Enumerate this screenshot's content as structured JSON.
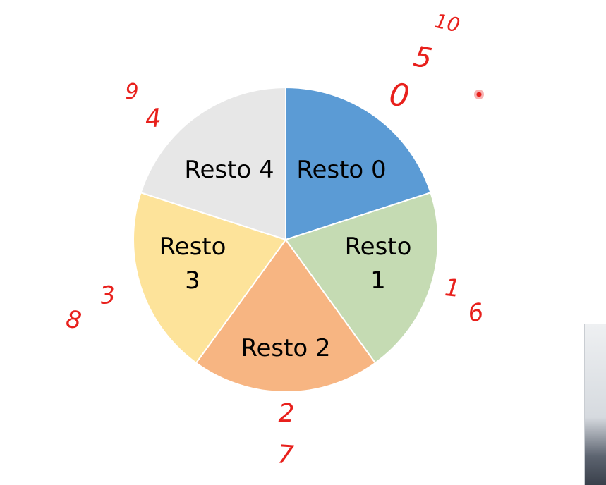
{
  "chart_data": {
    "type": "pie",
    "title": "",
    "slices": [
      {
        "label": "Resto 0",
        "value": 1,
        "color": "#5b9bd5"
      },
      {
        "label": "Resto 1",
        "value": 1,
        "color": "#c5dbb3"
      },
      {
        "label": "Resto 2",
        "value": 1,
        "color": "#f7b582"
      },
      {
        "label": "Resto 3",
        "value": 1,
        "color": "#fde39a"
      },
      {
        "label": "Resto 4",
        "value": 1,
        "color": "#e7e7e7"
      }
    ],
    "start_angle_deg": 0,
    "direction": "clockwise"
  },
  "annotations": {
    "color": "#e8201c",
    "notes": [
      {
        "slice": "Resto 0",
        "text": "0"
      },
      {
        "slice": "Resto 0",
        "text": "5"
      },
      {
        "slice": "Resto 0",
        "text": "10"
      },
      {
        "slice": "Resto 1",
        "text": "1"
      },
      {
        "slice": "Resto 1",
        "text": "6"
      },
      {
        "slice": "Resto 2",
        "text": "2"
      },
      {
        "slice": "Resto 2",
        "text": "7"
      },
      {
        "slice": "Resto 3",
        "text": "3"
      },
      {
        "slice": "Resto 3",
        "text": "8"
      },
      {
        "slice": "Resto 4",
        "text": "4"
      },
      {
        "slice": "Resto 4",
        "text": "9"
      }
    ]
  }
}
